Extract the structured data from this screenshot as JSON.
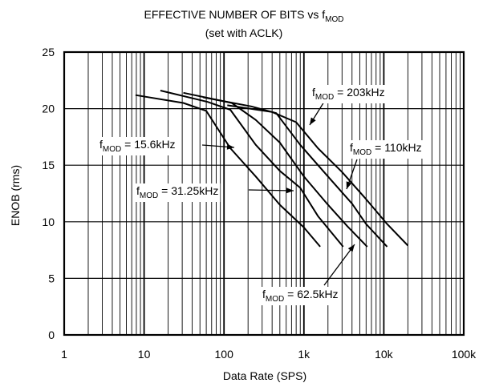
{
  "chart_data": {
    "type": "line",
    "title_main": "EFFECTIVE NUMBER OF BITS vs f",
    "title_sub": "MOD",
    "subtitle": "(set with ACLK)",
    "xlabel": "Data Rate (SPS)",
    "ylabel": "ENOB (rms)",
    "x_scale": "log",
    "xlim": [
      1,
      100000
    ],
    "ylim": [
      0,
      25
    ],
    "x_ticks": [
      {
        "value": 1,
        "label": "1"
      },
      {
        "value": 10,
        "label": "10"
      },
      {
        "value": 100,
        "label": "100"
      },
      {
        "value": 1000,
        "label": "1k"
      },
      {
        "value": 10000,
        "label": "10k"
      },
      {
        "value": 100000,
        "label": "100k"
      }
    ],
    "y_ticks": [
      {
        "value": 0,
        "label": "0"
      },
      {
        "value": 5,
        "label": "5"
      },
      {
        "value": 10,
        "label": "10"
      },
      {
        "value": 15,
        "label": "15"
      },
      {
        "value": 20,
        "label": "20"
      },
      {
        "value": 25,
        "label": "25"
      }
    ],
    "grid": true,
    "series": [
      {
        "id": "15.6k",
        "points": [
          [
            7.8,
            21.2
          ],
          [
            31,
            20.5
          ],
          [
            60,
            19.8
          ],
          [
            120,
            16.5
          ],
          [
            250,
            14.0
          ],
          [
            500,
            11.5
          ],
          [
            1000,
            9.5
          ],
          [
            1600,
            7.8
          ]
        ]
      },
      {
        "id": "31.25k",
        "points": [
          [
            16,
            21.6
          ],
          [
            62,
            20.6
          ],
          [
            120,
            19.9
          ],
          [
            250,
            16.8
          ],
          [
            500,
            14.5
          ],
          [
            900,
            13.0
          ],
          [
            1500,
            10.5
          ],
          [
            3100,
            7.8
          ]
        ]
      },
      {
        "id": "62.5k",
        "points": [
          [
            31,
            21.4
          ],
          [
            125,
            20.5
          ],
          [
            250,
            19.0
          ],
          [
            500,
            17.0
          ],
          [
            1000,
            14.0
          ],
          [
            2000,
            11.5
          ],
          [
            3500,
            9.6
          ],
          [
            6200,
            7.8
          ]
        ]
      },
      {
        "id": "110k",
        "points": [
          [
            55,
            21.0
          ],
          [
            220,
            20.2
          ],
          [
            450,
            19.6
          ],
          [
            900,
            16.8
          ],
          [
            2000,
            14.0
          ],
          [
            4000,
            11.6
          ],
          [
            6000,
            9.8
          ],
          [
            11000,
            7.8
          ]
        ]
      },
      {
        "id": "203k",
        "points": [
          [
            110,
            20.3
          ],
          [
            400,
            19.7
          ],
          [
            800,
            18.8
          ],
          [
            1500,
            16.5
          ],
          [
            3000,
            14.4
          ],
          [
            6000,
            12.0
          ],
          [
            11000,
            9.8
          ],
          [
            20000,
            7.9
          ]
        ]
      }
    ],
    "annotations": [
      {
        "id": "203k",
        "prefix": "f",
        "sub": "MOD",
        "value": " = 203kHz"
      },
      {
        "id": "110k",
        "prefix": "f",
        "sub": "MOD",
        "value": " = 110kHz"
      },
      {
        "id": "15.6k",
        "prefix": "f",
        "sub": "MOD",
        "value": " = 15.6kHz"
      },
      {
        "id": "31.25k",
        "prefix": "f",
        "sub": "MOD",
        "value": " = 31.25kHz"
      },
      {
        "id": "62.5k",
        "prefix": "f",
        "sub": "MOD",
        "value": " = 62.5kHz"
      }
    ]
  }
}
